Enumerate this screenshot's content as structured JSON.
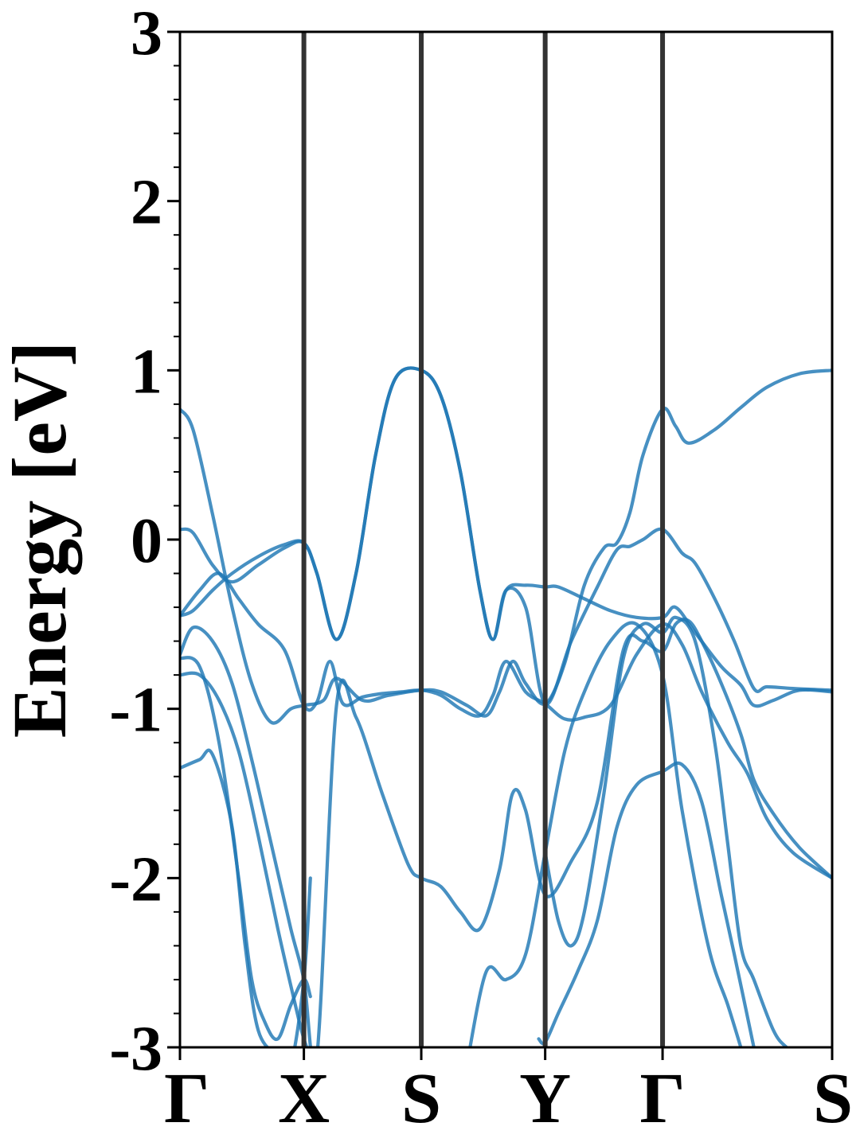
{
  "chart_data": {
    "type": "line",
    "title": "",
    "xlabel": "",
    "ylabel": "Energy [eV]",
    "ylim": [
      -3,
      3
    ],
    "yticks": [
      -3,
      -2,
      -1,
      0,
      1,
      2,
      3
    ],
    "ytick_labels": [
      "-3",
      "-2",
      "-1",
      "0",
      "1",
      "2",
      "3"
    ],
    "y_minor_step": 0.2,
    "x_path": {
      "labels": [
        "Γ",
        "X",
        "S",
        "Y",
        "Γ",
        "S"
      ],
      "positions": [
        0,
        0.19,
        0.37,
        0.56,
        0.74,
        1.0
      ]
    },
    "grid": false,
    "legend": "none",
    "colors": {
      "band": "#1f77b4",
      "divider": "#333333",
      "axis": "#000000"
    },
    "series": [
      {
        "x": [
          0,
          0.02,
          0.05,
          0.08,
          0.11,
          0.14,
          0.17,
          0.19,
          0.22,
          0.24,
          0.28,
          0.32,
          0.37,
          0.4,
          0.44,
          0.47,
          0.49,
          0.51,
          0.53,
          0.56,
          0.59,
          0.62,
          0.65,
          0.67,
          0.69,
          0.71,
          0.74,
          0.76,
          0.78,
          0.82,
          0.86,
          0.9,
          0.95,
          1.0
        ],
        "y": [
          0.77,
          0.65,
          0.15,
          -0.4,
          -0.85,
          -1.08,
          -1.0,
          -0.98,
          -0.95,
          -0.82,
          -0.95,
          -0.92,
          -0.89,
          -0.9,
          -0.98,
          -1.04,
          -0.9,
          -0.72,
          -0.85,
          -0.97,
          -0.73,
          -0.27,
          -0.05,
          -0.02,
          0.16,
          0.5,
          0.77,
          0.67,
          0.57,
          0.65,
          0.78,
          0.9,
          0.98,
          1.0
        ]
      },
      {
        "x": [
          0,
          0.02,
          0.05,
          0.08,
          0.12,
          0.16,
          0.19,
          0.21,
          0.24,
          0.27,
          0.3,
          0.33,
          0.37,
          0.4,
          0.43,
          0.46,
          0.48,
          0.5,
          0.53,
          0.56,
          0.58,
          0.62,
          0.66,
          0.7,
          0.74,
          0.76,
          0.79,
          0.83,
          0.86,
          0.88,
          0.91,
          0.95,
          1.0
        ],
        "y": [
          0.06,
          0.04,
          -0.15,
          -0.25,
          -0.15,
          -0.05,
          -0.02,
          -0.2,
          -0.59,
          -0.2,
          0.5,
          0.95,
          1.0,
          0.85,
          0.4,
          -0.3,
          -0.59,
          -0.3,
          -0.27,
          -0.28,
          -0.28,
          -0.35,
          -0.42,
          -0.46,
          -0.46,
          -0.4,
          -0.55,
          -0.75,
          -0.86,
          -0.98,
          -0.95,
          -0.89,
          -0.9
        ]
      },
      {
        "x": [
          0,
          0.02,
          0.05,
          0.08,
          0.12,
          0.16,
          0.19,
          0.21,
          0.24,
          0.27,
          0.3,
          0.33,
          0.37,
          0.4,
          0.43,
          0.46,
          0.48,
          0.5,
          0.53,
          0.56,
          0.6,
          0.64,
          0.67,
          0.69,
          0.71,
          0.74,
          0.77,
          0.79,
          0.82,
          0.85,
          0.88,
          0.9,
          0.94,
          1.0
        ],
        "y": [
          -0.45,
          -0.42,
          -0.3,
          -0.2,
          -0.1,
          -0.03,
          -0.02,
          -0.2,
          -0.59,
          -0.2,
          0.5,
          0.95,
          1.0,
          0.85,
          0.4,
          -0.3,
          -0.59,
          -0.3,
          -0.4,
          -0.97,
          -0.6,
          -0.28,
          -0.06,
          -0.04,
          0.0,
          0.06,
          -0.08,
          -0.14,
          -0.35,
          -0.6,
          -0.88,
          -0.87,
          -0.88,
          -0.89
        ]
      },
      {
        "x": [
          0,
          0.03,
          0.06,
          0.09,
          0.12,
          0.16,
          0.19,
          0.21,
          0.23,
          0.25,
          0.28,
          0.31,
          0.34,
          0.37,
          0.4,
          0.43,
          0.46,
          0.48,
          0.5,
          0.53,
          0.56,
          0.59,
          0.62,
          0.66,
          0.7,
          0.74,
          0.77,
          0.8,
          0.84,
          0.87,
          0.9,
          0.94,
          1.0
        ],
        "y": [
          -0.45,
          -0.3,
          -0.2,
          -0.35,
          -0.5,
          -0.65,
          -0.98,
          -0.96,
          -0.72,
          -0.97,
          -0.93,
          -0.91,
          -0.9,
          -0.89,
          -0.92,
          -1.0,
          -1.04,
          -0.92,
          -0.72,
          -0.9,
          -0.97,
          -1.06,
          -1.05,
          -0.98,
          -0.68,
          -0.5,
          -0.62,
          -0.9,
          -1.2,
          -1.38,
          -1.65,
          -1.85,
          -2.0
        ]
      },
      {
        "x": [
          0,
          0.02,
          0.05,
          0.08,
          0.11,
          0.14,
          0.17,
          0.19,
          0.21,
          0.24,
          0.27,
          0.31,
          0.35,
          0.37,
          0.4,
          0.43,
          0.46,
          0.49,
          0.51,
          0.53,
          0.56,
          0.6,
          0.64,
          0.68,
          0.71,
          0.74,
          0.76,
          0.78,
          0.8,
          0.83,
          0.86,
          0.88,
          0.91,
          0.95,
          1.0
        ],
        "y": [
          -0.68,
          -0.52,
          -0.6,
          -0.85,
          -1.3,
          -1.8,
          -2.3,
          -2.6,
          -3.05,
          -0.98,
          -1.05,
          -1.5,
          -1.92,
          -2.0,
          -2.05,
          -2.2,
          -2.3,
          -1.95,
          -1.5,
          -1.6,
          -2.1,
          -1.9,
          -1.55,
          -0.65,
          -0.6,
          -0.66,
          -0.5,
          -0.48,
          -0.6,
          -0.85,
          -1.15,
          -1.42,
          -1.62,
          -1.82,
          -2.0
        ]
      },
      {
        "x": [
          0,
          0.03,
          0.06,
          0.09,
          0.12,
          0.15,
          0.18,
          0.19,
          0.2,
          0.21
        ],
        "y": [
          -0.8,
          -0.8,
          -0.95,
          -1.25,
          -1.75,
          -2.3,
          -2.8,
          -2.95,
          -3.05,
          -3.1
        ]
      },
      {
        "x": [
          0,
          0.03,
          0.05,
          0.08,
          0.1,
          0.12,
          0.15,
          0.17,
          0.19,
          0.2
        ],
        "y": [
          -1.35,
          -1.3,
          -1.27,
          -1.7,
          -2.4,
          -2.9,
          -3.05,
          -3.1,
          -2.6,
          -2.0
        ]
      },
      {
        "x": [
          0,
          0.03,
          0.06,
          0.09,
          0.11,
          0.13,
          0.15,
          0.17,
          0.19,
          0.2
        ],
        "y": [
          -0.7,
          -0.75,
          -1.2,
          -2.0,
          -2.6,
          -2.85,
          -2.95,
          -2.75,
          -2.6,
          -2.7
        ]
      },
      {
        "x": [
          0.44,
          0.47,
          0.5,
          0.53,
          0.56,
          0.59,
          0.62,
          0.66,
          0.7,
          0.74,
          0.77,
          0.81,
          0.84,
          0.86
        ],
        "y": [
          -3.1,
          -2.55,
          -2.6,
          -2.45,
          -1.85,
          -1.25,
          -0.9,
          -0.6,
          -0.5,
          -0.8,
          -1.6,
          -2.4,
          -2.75,
          -3.0
        ]
      },
      {
        "x": [
          0.55,
          0.56,
          0.58,
          0.61,
          0.64,
          0.67,
          0.7,
          0.74,
          0.77,
          0.8,
          0.83,
          0.85,
          0.88
        ],
        "y": [
          -2.95,
          -2.97,
          -2.8,
          -2.55,
          -2.25,
          -1.7,
          -1.45,
          -1.37,
          -1.33,
          -1.55,
          -2.1,
          -2.45,
          -3.0
        ]
      },
      {
        "x": [
          0.56,
          0.58,
          0.6,
          0.62,
          0.65,
          0.68,
          0.71,
          0.74,
          0.76,
          0.79,
          0.82,
          0.84,
          0.86,
          0.88,
          0.91,
          0.93,
          0.95
        ],
        "y": [
          -1.85,
          -2.25,
          -2.4,
          -2.2,
          -1.5,
          -0.7,
          -0.5,
          -0.55,
          -0.46,
          -0.6,
          -1.2,
          -1.8,
          -2.4,
          -2.6,
          -2.9,
          -3.0,
          -3.05
        ]
      }
    ]
  }
}
